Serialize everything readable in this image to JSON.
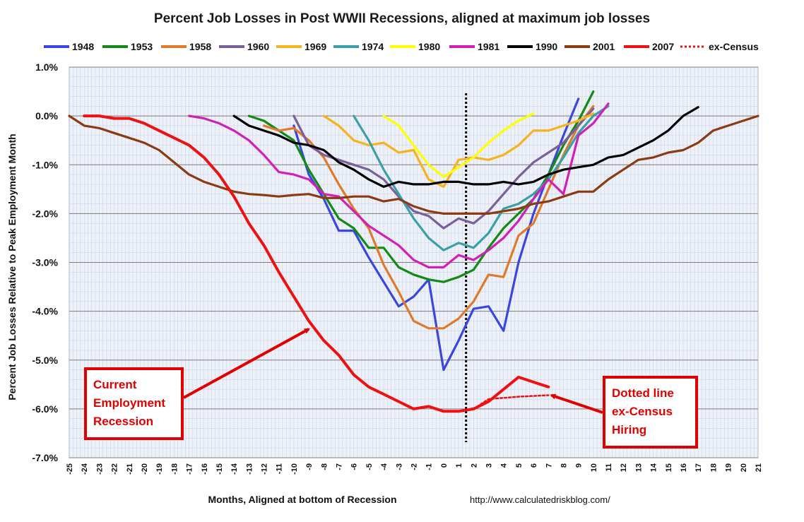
{
  "chart_data": {
    "type": "line",
    "title": "Percent Job Losses in Post WWII Recessions, aligned at maximum job losses",
    "xlabel": "Months, Aligned at bottom of Recession",
    "ylabel": "Percent Job Losses Relative to Peak Employment Month",
    "source": "http://www.calculatedriskblog.com/",
    "xlim": [
      -25,
      21
    ],
    "ylim": [
      -7,
      1
    ],
    "y_ticks": [
      "1.0%",
      "0.0%",
      "-1.0%",
      "-2.0%",
      "-3.0%",
      "-4.0%",
      "-5.0%",
      "-6.0%",
      "-7.0%"
    ],
    "x_ticks": [
      "-25",
      "-24",
      "-23",
      "-22",
      "-21",
      "-20",
      "-19",
      "-18",
      "-17",
      "-16",
      "-15",
      "-14",
      "-13",
      "-12",
      "-11",
      "-10",
      "-9",
      "-8",
      "-7",
      "-6",
      "-5",
      "-4",
      "-3",
      "-2",
      "-1",
      "0",
      "1",
      "2",
      "3",
      "4",
      "5",
      "6",
      "7",
      "8",
      "9",
      "10",
      "11",
      "12",
      "13",
      "14",
      "15",
      "16",
      "17",
      "18",
      "19",
      "20",
      "21"
    ],
    "grid": true,
    "legend_position": "top",
    "vertical_marker_x": 1.5,
    "series": [
      {
        "name": "1948",
        "color": "#3a46e0",
        "points": [
          [
            -10,
            -0.2
          ],
          [
            -9,
            -1.2
          ],
          [
            -8,
            -1.7
          ],
          [
            -7,
            -2.35
          ],
          [
            -6,
            -2.35
          ],
          [
            -5,
            -2.9
          ],
          [
            -4,
            -3.4
          ],
          [
            -3,
            -3.9
          ],
          [
            -2,
            -3.7
          ],
          [
            -1,
            -3.35
          ],
          [
            0,
            -5.2
          ],
          [
            1,
            -4.6
          ],
          [
            2,
            -3.95
          ],
          [
            3,
            -3.9
          ],
          [
            4,
            -4.4
          ],
          [
            5,
            -3.0
          ],
          [
            6,
            -2.0
          ],
          [
            7,
            -1.2
          ],
          [
            8,
            -0.4
          ],
          [
            9,
            0.35
          ]
        ]
      },
      {
        "name": "1953",
        "color": "#138a13",
        "points": [
          [
            -13,
            0.0
          ],
          [
            -12,
            -0.1
          ],
          [
            -11,
            -0.3
          ],
          [
            -10,
            -0.5
          ],
          [
            -9,
            -1.1
          ],
          [
            -8,
            -1.6
          ],
          [
            -7,
            -2.1
          ],
          [
            -6,
            -2.3
          ],
          [
            -5,
            -2.7
          ],
          [
            -4,
            -2.7
          ],
          [
            -3,
            -3.1
          ],
          [
            -2,
            -3.25
          ],
          [
            -1,
            -3.35
          ],
          [
            0,
            -3.4
          ],
          [
            1,
            -3.3
          ],
          [
            2,
            -3.15
          ],
          [
            3,
            -2.7
          ],
          [
            4,
            -2.3
          ],
          [
            5,
            -2.0
          ],
          [
            6,
            -1.7
          ],
          [
            7,
            -1.2
          ],
          [
            8,
            -0.6
          ],
          [
            9,
            -0.1
          ],
          [
            10,
            0.5
          ]
        ]
      },
      {
        "name": "1958",
        "color": "#e07a28",
        "points": [
          [
            -12,
            -0.2
          ],
          [
            -11,
            -0.3
          ],
          [
            -10,
            -0.25
          ],
          [
            -9,
            -0.5
          ],
          [
            -8,
            -0.85
          ],
          [
            -7,
            -1.4
          ],
          [
            -6,
            -1.9
          ],
          [
            -5,
            -2.3
          ],
          [
            -4,
            -3.05
          ],
          [
            -3,
            -3.6
          ],
          [
            -2,
            -4.2
          ],
          [
            -1,
            -4.35
          ],
          [
            0,
            -4.35
          ],
          [
            1,
            -4.15
          ],
          [
            2,
            -3.8
          ],
          [
            3,
            -3.25
          ],
          [
            4,
            -3.3
          ],
          [
            5,
            -2.45
          ],
          [
            6,
            -2.2
          ],
          [
            7,
            -1.5
          ],
          [
            8,
            -0.8
          ],
          [
            9,
            -0.2
          ],
          [
            10,
            0.2
          ]
        ]
      },
      {
        "name": "1960",
        "color": "#7a609a",
        "points": [
          [
            -10,
            0.0
          ],
          [
            -9,
            -0.6
          ],
          [
            -8,
            -0.8
          ],
          [
            -7,
            -0.9
          ],
          [
            -6,
            -1.0
          ],
          [
            -5,
            -1.1
          ],
          [
            -4,
            -1.3
          ],
          [
            -3,
            -1.65
          ],
          [
            -2,
            -1.95
          ],
          [
            -1,
            -2.05
          ],
          [
            0,
            -2.3
          ],
          [
            1,
            -2.1
          ],
          [
            2,
            -2.2
          ],
          [
            3,
            -1.95
          ],
          [
            4,
            -1.6
          ],
          [
            5,
            -1.25
          ],
          [
            6,
            -0.95
          ],
          [
            7,
            -0.75
          ],
          [
            8,
            -0.55
          ],
          [
            9,
            -0.2
          ],
          [
            10,
            0.15
          ]
        ]
      },
      {
        "name": "1969",
        "color": "#f5b31e",
        "points": [
          [
            -8,
            0.0
          ],
          [
            -7,
            -0.2
          ],
          [
            -6,
            -0.5
          ],
          [
            -5,
            -0.6
          ],
          [
            -4,
            -0.55
          ],
          [
            -3,
            -0.75
          ],
          [
            -2,
            -0.7
          ],
          [
            -1,
            -1.3
          ],
          [
            0,
            -1.45
          ],
          [
            1,
            -0.9
          ],
          [
            2,
            -0.85
          ],
          [
            3,
            -0.9
          ],
          [
            4,
            -0.8
          ],
          [
            5,
            -0.6
          ],
          [
            6,
            -0.3
          ],
          [
            7,
            -0.3
          ],
          [
            8,
            -0.2
          ],
          [
            9,
            -0.1
          ],
          [
            10,
            0.05
          ]
        ]
      },
      {
        "name": "1974",
        "color": "#3aa0a8",
        "points": [
          [
            -6,
            0.0
          ],
          [
            -5,
            -0.5
          ],
          [
            -4,
            -1.1
          ],
          [
            -3,
            -1.6
          ],
          [
            -2,
            -2.1
          ],
          [
            -1,
            -2.5
          ],
          [
            0,
            -2.75
          ],
          [
            1,
            -2.6
          ],
          [
            2,
            -2.7
          ],
          [
            3,
            -2.4
          ],
          [
            4,
            -1.9
          ],
          [
            5,
            -1.8
          ],
          [
            6,
            -1.6
          ],
          [
            7,
            -1.3
          ],
          [
            8,
            -0.85
          ],
          [
            9,
            -0.35
          ],
          [
            10,
            0.0
          ],
          [
            11,
            0.2
          ]
        ]
      },
      {
        "name": "1980",
        "color": "#ffff00",
        "points": [
          [
            -4,
            0.0
          ],
          [
            -3,
            -0.2
          ],
          [
            -2,
            -0.6
          ],
          [
            -1,
            -1.0
          ],
          [
            0,
            -1.25
          ],
          [
            1,
            -1.05
          ],
          [
            2,
            -0.85
          ],
          [
            3,
            -0.55
          ],
          [
            4,
            -0.3
          ],
          [
            5,
            -0.1
          ],
          [
            6,
            0.05
          ]
        ]
      },
      {
        "name": "1981",
        "color": "#d020b8",
        "points": [
          [
            -17,
            0.0
          ],
          [
            -16,
            -0.05
          ],
          [
            -15,
            -0.15
          ],
          [
            -14,
            -0.3
          ],
          [
            -13,
            -0.5
          ],
          [
            -12,
            -0.8
          ],
          [
            -11,
            -1.15
          ],
          [
            -10,
            -1.2
          ],
          [
            -9,
            -1.3
          ],
          [
            -8,
            -1.6
          ],
          [
            -7,
            -1.65
          ],
          [
            -6,
            -1.95
          ],
          [
            -5,
            -2.25
          ],
          [
            -4,
            -2.45
          ],
          [
            -3,
            -2.65
          ],
          [
            -2,
            -2.95
          ],
          [
            -1,
            -3.1
          ],
          [
            0,
            -3.1
          ],
          [
            1,
            -2.85
          ],
          [
            2,
            -2.95
          ],
          [
            3,
            -2.75
          ],
          [
            4,
            -2.5
          ],
          [
            5,
            -2.15
          ],
          [
            6,
            -1.7
          ],
          [
            7,
            -1.3
          ],
          [
            8,
            -1.6
          ],
          [
            9,
            -0.4
          ],
          [
            10,
            -0.15
          ],
          [
            11,
            0.25
          ]
        ]
      },
      {
        "name": "1990",
        "color": "#000000",
        "points": [
          [
            -14,
            0.0
          ],
          [
            -13,
            -0.2
          ],
          [
            -12,
            -0.3
          ],
          [
            -11,
            -0.4
          ],
          [
            -10,
            -0.55
          ],
          [
            -9,
            -0.6
          ],
          [
            -8,
            -0.7
          ],
          [
            -7,
            -0.95
          ],
          [
            -6,
            -1.1
          ],
          [
            -5,
            -1.3
          ],
          [
            -4,
            -1.45
          ],
          [
            -3,
            -1.35
          ],
          [
            -2,
            -1.4
          ],
          [
            -1,
            -1.4
          ],
          [
            0,
            -1.35
          ],
          [
            1,
            -1.35
          ],
          [
            2,
            -1.4
          ],
          [
            3,
            -1.4
          ],
          [
            4,
            -1.35
          ],
          [
            5,
            -1.4
          ],
          [
            6,
            -1.35
          ],
          [
            7,
            -1.2
          ],
          [
            8,
            -1.1
          ],
          [
            9,
            -1.05
          ],
          [
            10,
            -1.0
          ],
          [
            11,
            -0.85
          ],
          [
            12,
            -0.8
          ],
          [
            13,
            -0.65
          ],
          [
            14,
            -0.5
          ],
          [
            15,
            -0.3
          ],
          [
            16,
            0.0
          ],
          [
            17,
            0.18
          ]
        ]
      },
      {
        "name": "2001",
        "color": "#8b3a12",
        "points": [
          [
            -25,
            0.0
          ],
          [
            -24,
            -0.2
          ],
          [
            -23,
            -0.25
          ],
          [
            -22,
            -0.35
          ],
          [
            -21,
            -0.45
          ],
          [
            -20,
            -0.55
          ],
          [
            -19,
            -0.7
          ],
          [
            -18,
            -0.95
          ],
          [
            -17,
            -1.2
          ],
          [
            -16,
            -1.35
          ],
          [
            -15,
            -1.45
          ],
          [
            -14,
            -1.55
          ],
          [
            -13,
            -1.6
          ],
          [
            -12,
            -1.62
          ],
          [
            -11,
            -1.65
          ],
          [
            -10,
            -1.62
          ],
          [
            -9,
            -1.6
          ],
          [
            -8,
            -1.68
          ],
          [
            -7,
            -1.68
          ],
          [
            -6,
            -1.65
          ],
          [
            -5,
            -1.65
          ],
          [
            -4,
            -1.75
          ],
          [
            -3,
            -1.7
          ],
          [
            -2,
            -1.85
          ],
          [
            -1,
            -1.95
          ],
          [
            0,
            -2.0
          ],
          [
            1,
            -2.0
          ],
          [
            2,
            -2.0
          ],
          [
            3,
            -2.0
          ],
          [
            4,
            -1.95
          ],
          [
            5,
            -1.9
          ],
          [
            6,
            -1.8
          ],
          [
            7,
            -1.75
          ],
          [
            8,
            -1.65
          ],
          [
            9,
            -1.55
          ],
          [
            10,
            -1.55
          ],
          [
            11,
            -1.3
          ],
          [
            12,
            -1.1
          ],
          [
            13,
            -0.9
          ],
          [
            14,
            -0.85
          ],
          [
            15,
            -0.75
          ],
          [
            16,
            -0.7
          ],
          [
            17,
            -0.55
          ],
          [
            18,
            -0.3
          ],
          [
            19,
            -0.2
          ],
          [
            20,
            -0.1
          ],
          [
            21,
            0.0
          ]
        ]
      },
      {
        "name": "2007",
        "color": "#ee1111",
        "points": [
          [
            -24,
            0.0
          ],
          [
            -23,
            0.0
          ],
          [
            -22,
            -0.05
          ],
          [
            -21,
            -0.05
          ],
          [
            -20,
            -0.15
          ],
          [
            -19,
            -0.3
          ],
          [
            -18,
            -0.45
          ],
          [
            -17,
            -0.6
          ],
          [
            -16,
            -0.85
          ],
          [
            -15,
            -1.2
          ],
          [
            -14,
            -1.65
          ],
          [
            -13,
            -2.2
          ],
          [
            -12,
            -2.65
          ],
          [
            -11,
            -3.2
          ],
          [
            -10,
            -3.7
          ],
          [
            -9,
            -4.2
          ],
          [
            -8,
            -4.6
          ],
          [
            -7,
            -4.9
          ],
          [
            -6,
            -5.3
          ],
          [
            -5,
            -5.55
          ],
          [
            -4,
            -5.7
          ],
          [
            -3,
            -5.85
          ],
          [
            -2,
            -6.0
          ],
          [
            -1,
            -5.95
          ],
          [
            0,
            -6.05
          ],
          [
            1,
            -6.05
          ],
          [
            2,
            -6.0
          ],
          [
            3,
            -5.85
          ],
          [
            4,
            -5.6
          ],
          [
            5,
            -5.35
          ],
          [
            6,
            -5.45
          ],
          [
            7,
            -5.55
          ]
        ]
      },
      {
        "name": "ex-Census",
        "color": "#ee1111",
        "dashed": true,
        "points": [
          [
            2,
            -6.0
          ],
          [
            3,
            -5.8
          ],
          [
            5,
            -5.75
          ],
          [
            7,
            -5.72
          ]
        ]
      }
    ],
    "annotations": [
      {
        "lines": [
          "Current",
          "Employment",
          "Recession"
        ],
        "arrow_to": [
          -9,
          -4.25
        ]
      },
      {
        "lines": [
          "Dotted line",
          "ex-Census",
          "Hiring"
        ],
        "arrow_to": [
          7,
          -5.72
        ]
      }
    ]
  }
}
